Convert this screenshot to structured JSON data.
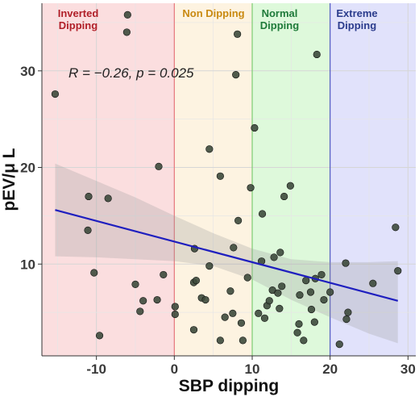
{
  "chart_data": {
    "type": "scatter",
    "xlabel": "SBP dipping",
    "ylabel": "pEV/μ L",
    "xlim": [
      -17,
      31
    ],
    "ylim": [
      0.5,
      37
    ],
    "x_ticks": [
      -10,
      0,
      10,
      20,
      30
    ],
    "y_ticks": [
      10,
      20,
      30
    ],
    "grid": true,
    "annotation": "R = −0.26, p = 0.025",
    "regions": [
      {
        "label": "Inverted\nDipping",
        "from": -17,
        "to": 0,
        "fill": "#fbdedf",
        "line": "#e8787c",
        "label_color": "#b02029"
      },
      {
        "label": "Non Dipping",
        "from": 0,
        "to": 10,
        "fill": "#fdf3e1",
        "line": "#e2b04a",
        "label_color": "#c98a12"
      },
      {
        "label": "Normal\nDipping",
        "from": 10,
        "to": 20,
        "fill": "#def9db",
        "line": "#7ccd72",
        "label_color": "#1f7a3a"
      },
      {
        "label": "Extreme\nDipping",
        "from": 20,
        "to": 31,
        "fill": "#e1e2fb",
        "line": "#4f58c4",
        "label_color": "#2b3c8c"
      }
    ],
    "points": [
      [
        -15.3,
        27.6
      ],
      [
        -6,
        35.8
      ],
      [
        -6.1,
        34
      ],
      [
        -11,
        17
      ],
      [
        -8.5,
        16.8
      ],
      [
        -11.1,
        13.5
      ],
      [
        -10.3,
        9.1
      ],
      [
        -5,
        7.9
      ],
      [
        -4,
        6.2
      ],
      [
        -4.4,
        5.1
      ],
      [
        -2.2,
        6.3
      ],
      [
        -1.4,
        8.9
      ],
      [
        -2,
        20.1
      ],
      [
        -9.6,
        2.6
      ],
      [
        0.1,
        5.6
      ],
      [
        0.1,
        4.8
      ],
      [
        2.5,
        3.2
      ],
      [
        2.5,
        8.1
      ],
      [
        2.8,
        8.3
      ],
      [
        2.6,
        11.6
      ],
      [
        3.5,
        6.5
      ],
      [
        4,
        6.3
      ],
      [
        4.5,
        9.8
      ],
      [
        4.5,
        21.9
      ],
      [
        5.9,
        2.1
      ],
      [
        5.9,
        19.1
      ],
      [
        6.5,
        4.5
      ],
      [
        7.2,
        7.2
      ],
      [
        7.5,
        4.9
      ],
      [
        7.6,
        11.7
      ],
      [
        8.2,
        14.5
      ],
      [
        7.9,
        29.6
      ],
      [
        8.1,
        33.8
      ],
      [
        8.8,
        2.1
      ],
      [
        8.6,
        3.9
      ],
      [
        9.4,
        8.6
      ],
      [
        9.8,
        17.9
      ],
      [
        10.3,
        24.1
      ],
      [
        10.8,
        4.9
      ],
      [
        11.3,
        15.2
      ],
      [
        11.2,
        10.3
      ],
      [
        11.6,
        4.4
      ],
      [
        11.9,
        5.7
      ],
      [
        12.2,
        6.2
      ],
      [
        12.6,
        7.3
      ],
      [
        12.8,
        10.7
      ],
      [
        13.3,
        7
      ],
      [
        13.5,
        5.4
      ],
      [
        13.8,
        7.7
      ],
      [
        13.6,
        11.2
      ],
      [
        14.1,
        17
      ],
      [
        14.9,
        18.1
      ],
      [
        15.8,
        2.9
      ],
      [
        16,
        3.8
      ],
      [
        16.1,
        6.8
      ],
      [
        16.9,
        8.3
      ],
      [
        16.6,
        2.1
      ],
      [
        17.5,
        7.1
      ],
      [
        17.6,
        5.3
      ],
      [
        18,
        4
      ],
      [
        18.3,
        31.7
      ],
      [
        18.1,
        8.5
      ],
      [
        18.9,
        8.9
      ],
      [
        19.2,
        6.3
      ],
      [
        20,
        7.1
      ],
      [
        21.2,
        1.7
      ],
      [
        22.1,
        4.3
      ],
      [
        22.3,
        5
      ],
      [
        22,
        10.1
      ],
      [
        25.5,
        8
      ],
      [
        28.4,
        13.8
      ],
      [
        28.7,
        9.3
      ]
    ],
    "regression_line": {
      "x": [
        -15.3,
        28.7
      ],
      "y": [
        15.6,
        6.2
      ],
      "color": "#1f1fbf"
    },
    "confidence_band": {
      "x": [
        -15.3,
        -10,
        -5,
        0,
        5,
        10,
        15,
        20,
        25,
        28.7
      ],
      "lower": [
        10.8,
        10.7,
        10.5,
        10.3,
        9.8,
        8.4,
        6.3,
        4.5,
        2.8,
        1.8
      ],
      "upper": [
        20.4,
        18.6,
        16.9,
        15.0,
        13.2,
        11.6,
        10.5,
        10.2,
        10.2,
        10.3
      ]
    },
    "point_color": "#3d4a3c"
  }
}
